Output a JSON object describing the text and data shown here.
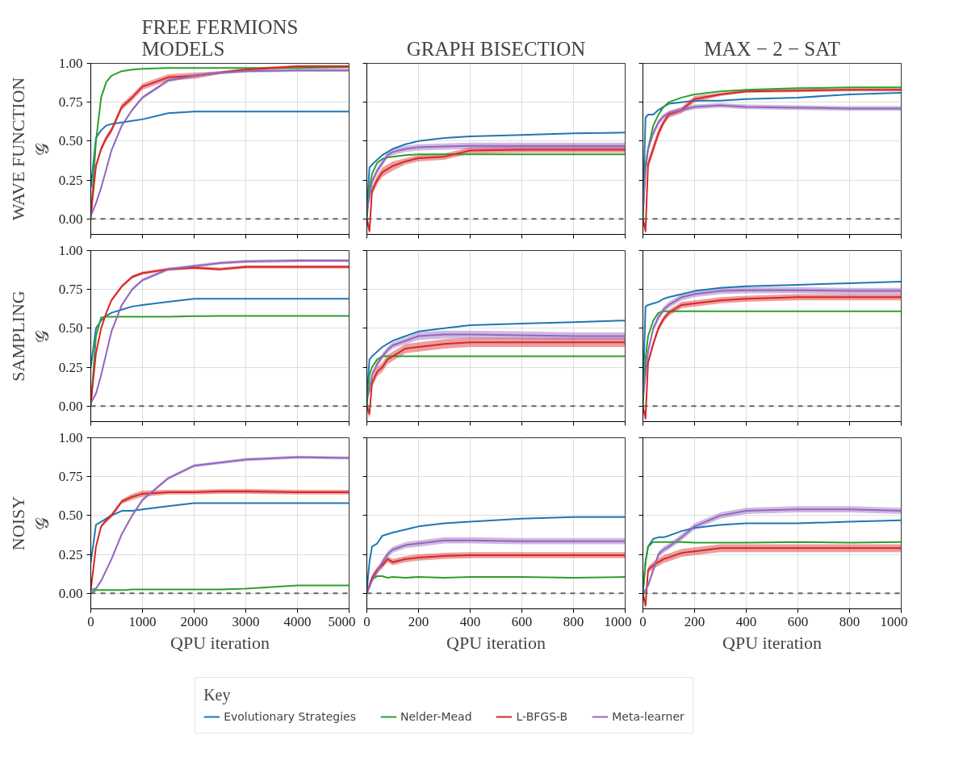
{
  "chart_data": [
    {
      "type": "line",
      "title": "FREE FERMIONS\nMODELS",
      "ylabel": "WAVE FUNCTION\n𝒢",
      "legend": "bottom",
      "legend_title": "Key",
      "grid": true,
      "tick_labels": "y",
      "xlim": [
        0,
        5000
      ],
      "xticks": [
        0,
        1000,
        2000,
        3000,
        4000,
        5000
      ],
      "ylim": [
        -0.1,
        1.0
      ],
      "yticks": [
        {
          "value": 0,
          "label": "0.00"
        },
        {
          "value": 0.25,
          "label": "0.25"
        },
        {
          "value": 0.5,
          "label": "0.50"
        },
        {
          "value": 0.75,
          "label": "0.75"
        },
        {
          "value": 1,
          "label": "1.00"
        }
      ],
      "ref_lines": [
        {
          "axis": "y",
          "value": 0,
          "color": "#666666",
          "line_style": "dashed"
        }
      ],
      "x": [
        0,
        100,
        200,
        300,
        400,
        600,
        800,
        1000,
        1500,
        2000,
        2500,
        3000,
        4000,
        5000
      ],
      "series": [
        {
          "name": "Evolutionary Strategies",
          "color": "#1f77b4",
          "values": [
            0.2,
            0.52,
            0.57,
            0.6,
            0.61,
            0.62,
            0.63,
            0.64,
            0.68,
            0.69,
            0.69,
            0.69,
            0.69,
            0.69
          ]
        },
        {
          "name": "Nelder-Mead",
          "color": "#2ca02c",
          "values": [
            0,
            0.5,
            0.78,
            0.88,
            0.92,
            0.95,
            0.96,
            0.965,
            0.97,
            0.97,
            0.97,
            0.97,
            0.97,
            0.975
          ]
        },
        {
          "name": "L-BFGS-B",
          "color": "#d62728",
          "values": [
            0.02,
            0.34,
            0.45,
            0.52,
            0.57,
            0.72,
            0.78,
            0.85,
            0.91,
            0.92,
            0.94,
            0.96,
            0.98,
            0.98
          ],
          "lower": [
            0.0,
            0.32,
            0.43,
            0.5,
            0.55,
            0.7,
            0.76,
            0.83,
            0.89,
            0.9,
            0.93,
            0.95,
            0.97,
            0.97
          ],
          "upper": [
            0.04,
            0.36,
            0.47,
            0.54,
            0.59,
            0.74,
            0.8,
            0.87,
            0.93,
            0.94,
            0.95,
            0.97,
            0.99,
            0.99
          ]
        },
        {
          "name": "Meta-learner",
          "color": "#9467bd",
          "values": [
            0.02,
            0.1,
            0.2,
            0.32,
            0.44,
            0.6,
            0.7,
            0.78,
            0.89,
            0.92,
            0.94,
            0.95,
            0.955,
            0.955
          ],
          "lower": [
            0.01,
            0.09,
            0.19,
            0.31,
            0.43,
            0.59,
            0.69,
            0.77,
            0.88,
            0.91,
            0.93,
            0.94,
            0.945,
            0.945
          ],
          "upper": [
            0.03,
            0.11,
            0.21,
            0.33,
            0.45,
            0.61,
            0.71,
            0.79,
            0.9,
            0.93,
            0.95,
            0.96,
            0.965,
            0.965
          ]
        }
      ]
    },
    {
      "type": "line",
      "title": "GRAPH BISECTION",
      "grid": true,
      "tick_labels": false,
      "xlim": [
        0,
        1000
      ],
      "xticks": [
        0,
        200,
        400,
        600,
        800,
        1000
      ],
      "ylim": [
        -0.1,
        1.0
      ],
      "yticks": [
        {
          "value": 0,
          "label": null
        },
        {
          "value": 0.25,
          "label": null
        },
        {
          "value": 0.5,
          "label": null
        },
        {
          "value": 0.75,
          "label": null
        },
        {
          "value": 1,
          "label": null
        }
      ],
      "ref_lines": [
        {
          "axis": "y",
          "value": 0,
          "color": "#666666",
          "line_style": "dashed"
        }
      ],
      "x": [
        0,
        10,
        20,
        40,
        60,
        80,
        100,
        150,
        200,
        300,
        400,
        600,
        800,
        1000
      ],
      "series": [
        {
          "color": "#1f77b4",
          "values": [
            0.05,
            0.33,
            0.35,
            0.38,
            0.41,
            0.43,
            0.45,
            0.48,
            0.5,
            0.52,
            0.53,
            0.54,
            0.55,
            0.555
          ]
        },
        {
          "color": "#2ca02c",
          "values": [
            0.0,
            0.2,
            0.29,
            0.36,
            0.385,
            0.395,
            0.4,
            0.41,
            0.415,
            0.415,
            0.415,
            0.415,
            0.415,
            0.415
          ]
        },
        {
          "color": "#d62728",
          "values": [
            0,
            -0.08,
            0.18,
            0.25,
            0.3,
            0.32,
            0.34,
            0.37,
            0.39,
            0.4,
            0.44,
            0.445,
            0.445,
            0.445
          ],
          "lower": [
            -0.03,
            -0.1,
            0.15,
            0.22,
            0.27,
            0.29,
            0.31,
            0.35,
            0.37,
            0.38,
            0.42,
            0.425,
            0.425,
            0.425
          ],
          "upper": [
            0.03,
            -0.05,
            0.21,
            0.28,
            0.33,
            0.35,
            0.37,
            0.39,
            0.41,
            0.42,
            0.46,
            0.465,
            0.465,
            0.465
          ]
        },
        {
          "color": "#9467bd",
          "values": [
            0.05,
            0.14,
            0.24,
            0.31,
            0.36,
            0.41,
            0.43,
            0.45,
            0.46,
            0.465,
            0.47,
            0.47,
            0.47,
            0.47
          ],
          "lower": [
            0.03,
            0.12,
            0.22,
            0.29,
            0.34,
            0.39,
            0.41,
            0.43,
            0.44,
            0.445,
            0.45,
            0.45,
            0.45,
            0.45
          ],
          "upper": [
            0.07,
            0.16,
            0.26,
            0.33,
            0.38,
            0.43,
            0.45,
            0.47,
            0.48,
            0.485,
            0.49,
            0.49,
            0.49,
            0.49
          ]
        }
      ]
    },
    {
      "type": "line",
      "title": "MAX − 2 − SAT",
      "grid": true,
      "tick_labels": false,
      "xlim": [
        0,
        1000
      ],
      "xticks": [
        0,
        200,
        400,
        600,
        800,
        1000
      ],
      "ylim": [
        -0.1,
        1.0
      ],
      "yticks": [
        {
          "value": 0,
          "label": null
        },
        {
          "value": 0.25,
          "label": null
        },
        {
          "value": 0.5,
          "label": null
        },
        {
          "value": 0.75,
          "label": null
        },
        {
          "value": 1,
          "label": null
        }
      ],
      "ref_lines": [
        {
          "axis": "y",
          "value": 0,
          "color": "#666666",
          "line_style": "dashed"
        }
      ],
      "x": [
        0,
        10,
        20,
        40,
        60,
        80,
        100,
        150,
        200,
        300,
        400,
        600,
        800,
        1000
      ],
      "series": [
        {
          "color": "#1f77b4",
          "values": [
            0.05,
            0.65,
            0.67,
            0.67,
            0.7,
            0.72,
            0.74,
            0.75,
            0.76,
            0.76,
            0.77,
            0.78,
            0.8,
            0.81
          ]
        },
        {
          "color": "#2ca02c",
          "values": [
            0,
            0.35,
            0.45,
            0.6,
            0.67,
            0.72,
            0.75,
            0.78,
            0.8,
            0.82,
            0.83,
            0.84,
            0.845,
            0.845
          ]
        },
        {
          "color": "#d62728",
          "values": [
            0.0,
            -0.08,
            0.35,
            0.45,
            0.55,
            0.62,
            0.67,
            0.7,
            0.77,
            0.8,
            0.82,
            0.825,
            0.83,
            0.83
          ],
          "lower": [
            -0.02,
            -0.1,
            0.32,
            0.42,
            0.52,
            0.6,
            0.65,
            0.68,
            0.75,
            0.79,
            0.81,
            0.815,
            0.82,
            0.82
          ],
          "upper": [
            0.02,
            -0.06,
            0.38,
            0.48,
            0.58,
            0.64,
            0.69,
            0.72,
            0.79,
            0.81,
            0.83,
            0.835,
            0.84,
            0.84
          ]
        },
        {
          "color": "#9467bd",
          "values": [
            0.05,
            0.3,
            0.45,
            0.55,
            0.62,
            0.66,
            0.68,
            0.7,
            0.72,
            0.73,
            0.72,
            0.715,
            0.71,
            0.71
          ],
          "lower": [
            0.03,
            0.28,
            0.43,
            0.53,
            0.6,
            0.645,
            0.665,
            0.685,
            0.705,
            0.715,
            0.705,
            0.7,
            0.695,
            0.695
          ],
          "upper": [
            0.07,
            0.32,
            0.47,
            0.57,
            0.64,
            0.675,
            0.695,
            0.715,
            0.735,
            0.745,
            0.735,
            0.73,
            0.725,
            0.725
          ]
        }
      ]
    },
    {
      "type": "line",
      "ylabel": "SAMPLING\n𝒢",
      "grid": true,
      "tick_labels": "y",
      "xlim": [
        0,
        5000
      ],
      "xticks": [
        0,
        1000,
        2000,
        3000,
        4000,
        5000
      ],
      "ylim": [
        -0.1,
        1.0
      ],
      "yticks": [
        {
          "value": 0,
          "label": "0.00"
        },
        {
          "value": 0.25,
          "label": "0.25"
        },
        {
          "value": 0.5,
          "label": "0.50"
        },
        {
          "value": 0.75,
          "label": "0.75"
        },
        {
          "value": 1,
          "label": "1.00"
        }
      ],
      "ref_lines": [
        {
          "axis": "y",
          "value": 0,
          "color": "#666666",
          "line_style": "dashed"
        }
      ],
      "x": [
        0,
        100,
        200,
        300,
        400,
        600,
        800,
        1000,
        1500,
        2000,
        2500,
        3000,
        4000,
        5000
      ],
      "series": [
        {
          "color": "#1f77b4",
          "values": [
            0.25,
            0.5,
            0.55,
            0.58,
            0.6,
            0.62,
            0.64,
            0.65,
            0.67,
            0.69,
            0.69,
            0.69,
            0.69,
            0.69
          ]
        },
        {
          "color": "#2ca02c",
          "values": [
            0,
            0.45,
            0.57,
            0.575,
            0.575,
            0.575,
            0.575,
            0.575,
            0.575,
            0.578,
            0.58,
            0.58,
            0.58,
            0.58
          ]
        },
        {
          "color": "#d62728",
          "values": [
            0.02,
            0.34,
            0.5,
            0.6,
            0.68,
            0.77,
            0.83,
            0.855,
            0.88,
            0.89,
            0.88,
            0.895,
            0.895,
            0.895
          ],
          "lower": [
            0.01,
            0.33,
            0.49,
            0.59,
            0.67,
            0.76,
            0.82,
            0.845,
            0.87,
            0.88,
            0.87,
            0.885,
            0.885,
            0.885
          ],
          "upper": [
            0.03,
            0.35,
            0.51,
            0.61,
            0.69,
            0.78,
            0.84,
            0.865,
            0.89,
            0.9,
            0.89,
            0.905,
            0.905,
            0.905
          ]
        },
        {
          "color": "#9467bd",
          "values": [
            0.02,
            0.08,
            0.2,
            0.34,
            0.48,
            0.65,
            0.75,
            0.81,
            0.88,
            0.9,
            0.92,
            0.93,
            0.935,
            0.935
          ],
          "lower": [
            0.01,
            0.07,
            0.19,
            0.33,
            0.47,
            0.64,
            0.74,
            0.8,
            0.87,
            0.89,
            0.91,
            0.92,
            0.925,
            0.925
          ],
          "upper": [
            0.03,
            0.09,
            0.21,
            0.35,
            0.49,
            0.66,
            0.76,
            0.82,
            0.89,
            0.91,
            0.93,
            0.94,
            0.945,
            0.945
          ]
        }
      ]
    },
    {
      "type": "line",
      "grid": true,
      "tick_labels": false,
      "xlim": [
        0,
        1000
      ],
      "xticks": [
        0,
        200,
        400,
        600,
        800,
        1000
      ],
      "ylim": [
        -0.1,
        1.0
      ],
      "yticks": [
        {
          "value": 0,
          "label": null
        },
        {
          "value": 0.25,
          "label": null
        },
        {
          "value": 0.5,
          "label": null
        },
        {
          "value": 0.75,
          "label": null
        },
        {
          "value": 1,
          "label": null
        }
      ],
      "ref_lines": [
        {
          "axis": "y",
          "value": 0,
          "color": "#666666",
          "line_style": "dashed"
        }
      ],
      "x": [
        0,
        10,
        20,
        40,
        60,
        80,
        100,
        150,
        200,
        300,
        400,
        600,
        800,
        1000
      ],
      "series": [
        {
          "color": "#1f77b4",
          "values": [
            0.05,
            0.3,
            0.32,
            0.35,
            0.38,
            0.4,
            0.42,
            0.45,
            0.48,
            0.5,
            0.52,
            0.53,
            0.54,
            0.55
          ]
        },
        {
          "color": "#2ca02c",
          "values": [
            0.0,
            0.2,
            0.25,
            0.3,
            0.32,
            0.32,
            0.32,
            0.32,
            0.32,
            0.32,
            0.32,
            0.32,
            0.32,
            0.32
          ]
        },
        {
          "color": "#d62728",
          "values": [
            0,
            -0.05,
            0.15,
            0.22,
            0.25,
            0.3,
            0.32,
            0.37,
            0.38,
            0.4,
            0.41,
            0.41,
            0.41,
            0.41
          ],
          "lower": [
            -0.03,
            -0.08,
            0.12,
            0.19,
            0.22,
            0.27,
            0.29,
            0.34,
            0.35,
            0.37,
            0.38,
            0.38,
            0.38,
            0.38
          ],
          "upper": [
            0.03,
            -0.02,
            0.18,
            0.25,
            0.28,
            0.33,
            0.35,
            0.4,
            0.41,
            0.43,
            0.44,
            0.44,
            0.44,
            0.44
          ]
        },
        {
          "color": "#9467bd",
          "values": [
            0.05,
            0.1,
            0.2,
            0.27,
            0.32,
            0.36,
            0.39,
            0.42,
            0.45,
            0.46,
            0.46,
            0.455,
            0.45,
            0.45
          ],
          "lower": [
            0.03,
            0.08,
            0.18,
            0.25,
            0.3,
            0.34,
            0.37,
            0.4,
            0.425,
            0.435,
            0.435,
            0.43,
            0.425,
            0.425
          ],
          "upper": [
            0.07,
            0.12,
            0.22,
            0.29,
            0.34,
            0.38,
            0.41,
            0.44,
            0.475,
            0.485,
            0.485,
            0.48,
            0.475,
            0.475
          ]
        }
      ]
    },
    {
      "type": "line",
      "grid": true,
      "tick_labels": false,
      "xlim": [
        0,
        1000
      ],
      "xticks": [
        0,
        200,
        400,
        600,
        800,
        1000
      ],
      "ylim": [
        -0.1,
        1.0
      ],
      "yticks": [
        {
          "value": 0,
          "label": null
        },
        {
          "value": 0.25,
          "label": null
        },
        {
          "value": 0.5,
          "label": null
        },
        {
          "value": 0.75,
          "label": null
        },
        {
          "value": 1,
          "label": null
        }
      ],
      "ref_lines": [
        {
          "axis": "y",
          "value": 0,
          "color": "#666666",
          "line_style": "dashed"
        }
      ],
      "x": [
        0,
        10,
        20,
        40,
        60,
        80,
        100,
        150,
        200,
        300,
        400,
        600,
        800,
        1000
      ],
      "series": [
        {
          "color": "#1f77b4",
          "values": [
            0.05,
            0.64,
            0.65,
            0.66,
            0.67,
            0.69,
            0.7,
            0.72,
            0.74,
            0.76,
            0.77,
            0.78,
            0.79,
            0.8
          ]
        },
        {
          "color": "#2ca02c",
          "values": [
            0,
            0.3,
            0.45,
            0.55,
            0.6,
            0.61,
            0.61,
            0.61,
            0.61,
            0.61,
            0.61,
            0.61,
            0.61,
            0.61
          ]
        },
        {
          "color": "#d62728",
          "values": [
            0.0,
            -0.08,
            0.28,
            0.4,
            0.5,
            0.56,
            0.6,
            0.65,
            0.66,
            0.68,
            0.69,
            0.7,
            0.7,
            0.7
          ],
          "lower": [
            -0.02,
            -0.1,
            0.26,
            0.38,
            0.48,
            0.54,
            0.58,
            0.63,
            0.64,
            0.66,
            0.67,
            0.68,
            0.68,
            0.68
          ],
          "upper": [
            0.02,
            -0.06,
            0.3,
            0.42,
            0.52,
            0.58,
            0.62,
            0.67,
            0.68,
            0.7,
            0.71,
            0.72,
            0.72,
            0.72
          ]
        },
        {
          "color": "#9467bd",
          "values": [
            0.05,
            0.2,
            0.35,
            0.5,
            0.57,
            0.62,
            0.65,
            0.7,
            0.72,
            0.74,
            0.745,
            0.745,
            0.74,
            0.74
          ],
          "lower": [
            0.03,
            0.18,
            0.33,
            0.48,
            0.55,
            0.6,
            0.63,
            0.68,
            0.7,
            0.72,
            0.725,
            0.725,
            0.72,
            0.72
          ],
          "upper": [
            0.07,
            0.22,
            0.37,
            0.52,
            0.59,
            0.64,
            0.67,
            0.72,
            0.74,
            0.76,
            0.765,
            0.765,
            0.76,
            0.76
          ]
        }
      ]
    },
    {
      "type": "line",
      "ylabel": "NOISY\n𝒢",
      "xlabel": "QPU iteration",
      "grid": true,
      "xlim": [
        0,
        5000
      ],
      "xticks": [
        0,
        1000,
        2000,
        3000,
        4000,
        5000
      ],
      "ylim": [
        -0.1,
        1.0
      ],
      "yticks": [
        {
          "value": 0,
          "label": "0.00"
        },
        {
          "value": 0.25,
          "label": "0.25"
        },
        {
          "value": 0.5,
          "label": "0.50"
        },
        {
          "value": 0.75,
          "label": "0.75"
        },
        {
          "value": 1,
          "label": "1.00"
        }
      ],
      "ref_lines": [
        {
          "axis": "y",
          "value": 0,
          "color": "#666666",
          "line_style": "dashed"
        }
      ],
      "x": [
        0,
        100,
        200,
        300,
        400,
        600,
        800,
        1000,
        1500,
        2000,
        2500,
        3000,
        4000,
        5000
      ],
      "series": [
        {
          "color": "#1f77b4",
          "values": [
            0.2,
            0.44,
            0.46,
            0.48,
            0.5,
            0.53,
            0.53,
            0.54,
            0.56,
            0.58,
            0.58,
            0.58,
            0.58,
            0.58
          ]
        },
        {
          "color": "#2ca02c",
          "values": [
            0,
            0.02,
            0.02,
            0.02,
            0.02,
            0.02,
            0.025,
            0.025,
            0.025,
            0.025,
            0.025,
            0.03,
            0.05,
            0.05
          ]
        },
        {
          "color": "#d62728",
          "values": [
            0.02,
            0.3,
            0.43,
            0.47,
            0.5,
            0.59,
            0.62,
            0.64,
            0.65,
            0.65,
            0.655,
            0.655,
            0.65,
            0.65
          ],
          "lower": [
            0.01,
            0.29,
            0.42,
            0.455,
            0.485,
            0.575,
            0.6,
            0.62,
            0.635,
            0.635,
            0.64,
            0.64,
            0.635,
            0.635
          ],
          "upper": [
            0.03,
            0.31,
            0.44,
            0.485,
            0.515,
            0.605,
            0.64,
            0.66,
            0.665,
            0.665,
            0.67,
            0.67,
            0.665,
            0.665
          ]
        },
        {
          "color": "#9467bd",
          "values": [
            0.02,
            0.03,
            0.08,
            0.15,
            0.22,
            0.38,
            0.5,
            0.6,
            0.74,
            0.82,
            0.84,
            0.86,
            0.875,
            0.87
          ],
          "lower": [
            0.01,
            0.02,
            0.07,
            0.14,
            0.21,
            0.37,
            0.49,
            0.59,
            0.73,
            0.81,
            0.83,
            0.85,
            0.865,
            0.86
          ],
          "upper": [
            0.03,
            0.04,
            0.09,
            0.16,
            0.23,
            0.39,
            0.51,
            0.61,
            0.75,
            0.83,
            0.85,
            0.87,
            0.885,
            0.88
          ]
        }
      ]
    },
    {
      "type": "line",
      "xlabel": "QPU iteration",
      "grid": true,
      "tick_labels": "x",
      "xlim": [
        0,
        1000
      ],
      "xticks": [
        0,
        200,
        400,
        600,
        800,
        1000
      ],
      "ylim": [
        -0.1,
        1.0
      ],
      "yticks": [
        {
          "value": 0,
          "label": null
        },
        {
          "value": 0.25,
          "label": null
        },
        {
          "value": 0.5,
          "label": null
        },
        {
          "value": 0.75,
          "label": null
        },
        {
          "value": 1,
          "label": null
        }
      ],
      "ref_lines": [
        {
          "axis": "y",
          "value": 0,
          "color": "#666666",
          "line_style": "dashed"
        }
      ],
      "x": [
        0,
        10,
        20,
        40,
        60,
        80,
        100,
        150,
        200,
        300,
        400,
        600,
        800,
        1000
      ],
      "series": [
        {
          "color": "#1f77b4",
          "values": [
            0.02,
            0.2,
            0.3,
            0.32,
            0.37,
            0.38,
            0.39,
            0.41,
            0.43,
            0.45,
            0.46,
            0.48,
            0.49,
            0.49
          ]
        },
        {
          "color": "#2ca02c",
          "values": [
            0,
            0.05,
            0.09,
            0.11,
            0.11,
            0.1,
            0.105,
            0.1,
            0.105,
            0.1,
            0.105,
            0.105,
            0.1,
            0.105
          ]
        },
        {
          "color": "#d62728",
          "values": [
            0,
            0.05,
            0.1,
            0.15,
            0.18,
            0.22,
            0.2,
            0.22,
            0.23,
            0.24,
            0.245,
            0.245,
            0.245,
            0.245
          ],
          "lower": [
            -0.01,
            0.03,
            0.08,
            0.13,
            0.16,
            0.2,
            0.18,
            0.2,
            0.21,
            0.22,
            0.225,
            0.225,
            0.225,
            0.225
          ],
          "upper": [
            0.01,
            0.07,
            0.12,
            0.17,
            0.2,
            0.24,
            0.22,
            0.24,
            0.25,
            0.26,
            0.265,
            0.265,
            0.265,
            0.265
          ]
        },
        {
          "color": "#9467bd",
          "values": [
            0,
            0.04,
            0.08,
            0.14,
            0.2,
            0.25,
            0.28,
            0.31,
            0.32,
            0.34,
            0.34,
            0.335,
            0.335,
            0.335
          ],
          "lower": [
            -0.01,
            0.03,
            0.07,
            0.12,
            0.18,
            0.23,
            0.26,
            0.29,
            0.3,
            0.32,
            0.32,
            0.315,
            0.315,
            0.315
          ],
          "upper": [
            0.01,
            0.05,
            0.09,
            0.16,
            0.22,
            0.27,
            0.3,
            0.33,
            0.34,
            0.36,
            0.36,
            0.355,
            0.355,
            0.355
          ]
        }
      ]
    },
    {
      "type": "line",
      "xlabel": "QPU iteration",
      "grid": true,
      "tick_labels": "x",
      "xlim": [
        0,
        1000
      ],
      "xticks": [
        0,
        200,
        400,
        600,
        800,
        1000
      ],
      "ylim": [
        -0.1,
        1.0
      ],
      "yticks": [
        {
          "value": 0,
          "label": null
        },
        {
          "value": 0.25,
          "label": null
        },
        {
          "value": 0.5,
          "label": null
        },
        {
          "value": 0.75,
          "label": null
        },
        {
          "value": 1,
          "label": null
        }
      ],
      "ref_lines": [
        {
          "axis": "y",
          "value": 0,
          "color": "#666666",
          "line_style": "dashed"
        }
      ],
      "x": [
        0,
        10,
        20,
        40,
        60,
        80,
        100,
        150,
        200,
        300,
        400,
        600,
        800,
        1000
      ],
      "series": [
        {
          "color": "#1f77b4",
          "values": [
            0.0,
            0.2,
            0.3,
            0.35,
            0.36,
            0.36,
            0.37,
            0.4,
            0.42,
            0.44,
            0.45,
            0.45,
            0.46,
            0.47
          ]
        },
        {
          "color": "#2ca02c",
          "values": [
            0,
            0.2,
            0.3,
            0.33,
            0.33,
            0.33,
            0.33,
            0.33,
            0.325,
            0.325,
            0.325,
            0.33,
            0.325,
            0.33
          ]
        },
        {
          "color": "#d62728",
          "values": [
            0,
            -0.08,
            0.15,
            0.18,
            0.2,
            0.22,
            0.23,
            0.26,
            0.27,
            0.29,
            0.29,
            0.29,
            0.29,
            0.29
          ],
          "lower": [
            -0.02,
            -0.1,
            0.13,
            0.155,
            0.175,
            0.195,
            0.205,
            0.235,
            0.245,
            0.265,
            0.265,
            0.265,
            0.265,
            0.265
          ],
          "upper": [
            0.02,
            -0.06,
            0.17,
            0.205,
            0.225,
            0.245,
            0.255,
            0.285,
            0.295,
            0.315,
            0.315,
            0.315,
            0.315,
            0.315
          ]
        },
        {
          "color": "#9467bd",
          "values": [
            0,
            0.02,
            0.05,
            0.15,
            0.25,
            0.28,
            0.3,
            0.36,
            0.43,
            0.5,
            0.53,
            0.54,
            0.54,
            0.53
          ],
          "lower": [
            -0.01,
            0.01,
            0.04,
            0.13,
            0.23,
            0.26,
            0.28,
            0.34,
            0.41,
            0.48,
            0.51,
            0.52,
            0.52,
            0.51
          ],
          "upper": [
            0.01,
            0.03,
            0.06,
            0.17,
            0.27,
            0.3,
            0.32,
            0.38,
            0.45,
            0.52,
            0.55,
            0.56,
            0.56,
            0.55
          ]
        }
      ]
    }
  ]
}
